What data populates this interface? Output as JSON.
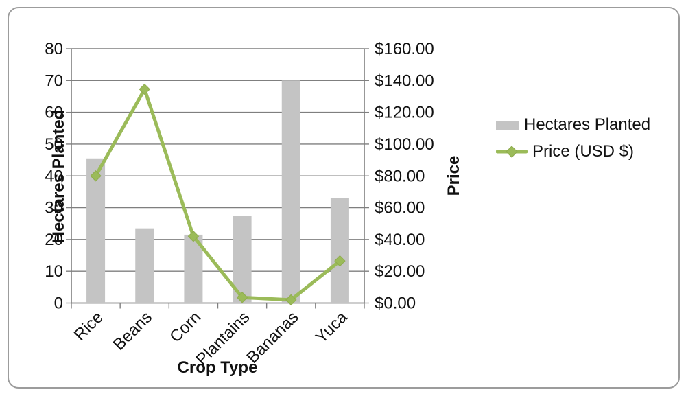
{
  "chart_data": {
    "type": "combo-bar-line",
    "categories": [
      "Rice",
      "Beans",
      "Corn",
      "Plantains",
      "Bananas",
      "Yuca"
    ],
    "series": [
      {
        "name": "Hectares Planted",
        "type": "bar",
        "axis": "left",
        "values": [
          45.5,
          23.5,
          21.5,
          27.5,
          70,
          33
        ]
      },
      {
        "name": "Price (USD $)",
        "type": "line",
        "axis": "right",
        "values": [
          80,
          134.5,
          42,
          3.5,
          2,
          26.5
        ]
      }
    ],
    "x_axis": {
      "title": "Crop Type"
    },
    "left_axis": {
      "title": "Hectares Planted",
      "min": 0,
      "max": 80,
      "step": 10,
      "tick_labels": [
        "0",
        "10",
        "20",
        "30",
        "40",
        "50",
        "60",
        "70",
        "80"
      ]
    },
    "right_axis": {
      "title": "Price",
      "min": 0,
      "max": 160,
      "step": 20,
      "tick_labels": [
        "$0.00",
        "$20.00",
        "$40.00",
        "$60.00",
        "$80.00",
        "$100.00",
        "$120.00",
        "$140.00",
        "$160.00"
      ]
    },
    "legend": {
      "position": "right",
      "items": [
        "Hectares Planted",
        "Price (USD $)"
      ]
    },
    "grid": true
  },
  "colors": {
    "bar": "#c4c4c4",
    "line": "#9bbb59",
    "line_edge": "#8fac4e",
    "grid": "#7f7f7f",
    "axis": "#7f7f7f",
    "text": "#111111",
    "frame_border": "#9c9c9c",
    "background": "#ffffff"
  }
}
